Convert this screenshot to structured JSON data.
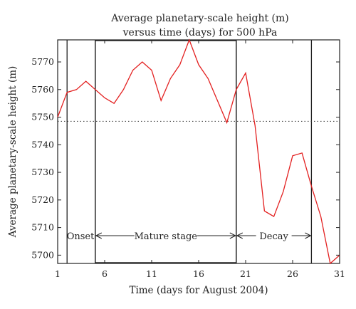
{
  "chart_data": {
    "type": "line",
    "title": [
      "Average planetary-scale height (m)",
      "versus time (days) for 500 hPa"
    ],
    "xlabel": "Time (days for August 2004)",
    "ylabel": "Average planetary-scale height (m)",
    "xlim": [
      1,
      31
    ],
    "ylim": [
      5697,
      5778
    ],
    "xticks": [
      1,
      6,
      11,
      16,
      21,
      26,
      31
    ],
    "yticks": [
      5700,
      5710,
      5720,
      5730,
      5740,
      5750,
      5760,
      5770
    ],
    "grid": false,
    "line_color": "#e32020",
    "series": [
      {
        "x": [
          1,
          2,
          3,
          4,
          5,
          6,
          7,
          8,
          9,
          10,
          11,
          12,
          13,
          14,
          15,
          16,
          17,
          18,
          19,
          20,
          21,
          22,
          23,
          24,
          25,
          26,
          27,
          28,
          29,
          30,
          31
        ],
        "y": [
          5750,
          5759,
          5760,
          5763,
          5760,
          5757,
          5755,
          5760,
          5767,
          5770,
          5767,
          5756,
          5764,
          5769,
          5778,
          5769,
          5764,
          5756,
          5748,
          5760,
          5766,
          5747,
          5716,
          5714,
          5723,
          5736,
          5737,
          5725,
          5714,
          5697,
          5700
        ]
      }
    ],
    "reference_line": {
      "y": 5748.5,
      "style": "dotted"
    },
    "phases": [
      {
        "label": "Onset",
        "x_start": 2,
        "x_end": 5
      },
      {
        "label": "Mature stage",
        "x_start": 5,
        "x_end": 20
      },
      {
        "label": "Decay",
        "x_start": 20,
        "x_end": 28
      }
    ]
  }
}
